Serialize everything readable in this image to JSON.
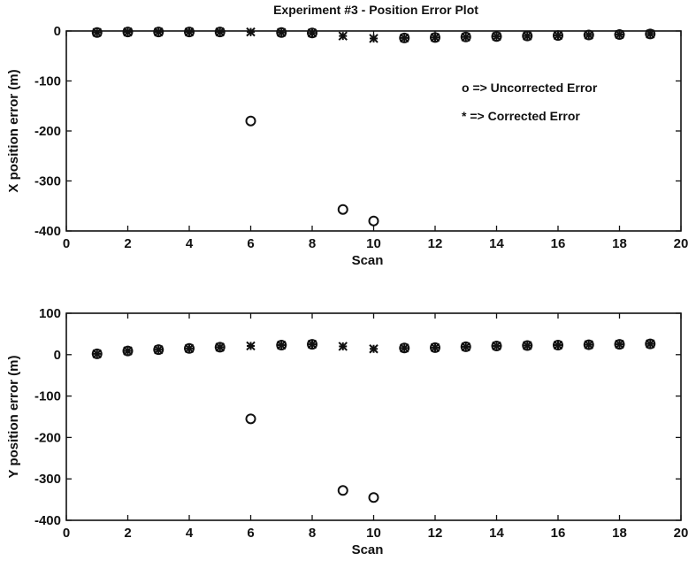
{
  "title": "Experiment #3 - Position Error Plot",
  "legend": {
    "uncorrected_label": "o => Uncorrected Error",
    "corrected_label": "* => Corrected Error",
    "placement": "upper-right of top panel"
  },
  "chart_data": [
    {
      "type": "scatter",
      "title": "Experiment #3 - Position Error Plot",
      "xlabel": "Scan",
      "ylabel": "X position error (m)",
      "xlim": [
        0,
        20
      ],
      "ylim": [
        -400,
        0
      ],
      "xticks": [
        0,
        2,
        4,
        6,
        8,
        10,
        12,
        14,
        16,
        18,
        20
      ],
      "yticks": [
        -400,
        -300,
        -200,
        -100,
        0
      ],
      "grid": false,
      "legend_placement": "top-right",
      "series": [
        {
          "name": "Uncorrected Error",
          "marker": "o",
          "x": [
            1,
            2,
            3,
            4,
            5,
            6,
            7,
            8,
            9,
            10,
            11,
            12,
            13,
            14,
            15,
            16,
            17,
            18,
            19
          ],
          "y": [
            -3,
            -2,
            -2,
            -2,
            -2,
            -180,
            -3,
            -4,
            -357,
            -380,
            -14,
            -13,
            -12,
            -11,
            -10,
            -9,
            -8,
            -7,
            -6
          ]
        },
        {
          "name": "Corrected Error",
          "marker": "*",
          "x": [
            1,
            2,
            3,
            4,
            5,
            6,
            7,
            8,
            9,
            10,
            11,
            12,
            13,
            14,
            15,
            16,
            17,
            18,
            19
          ],
          "y": [
            -3,
            -2,
            -2,
            -2,
            -2,
            -2,
            -3,
            -4,
            -10,
            -15,
            -14,
            -13,
            -12,
            -11,
            -10,
            -9,
            -8,
            -7,
            -6
          ]
        }
      ]
    },
    {
      "type": "scatter",
      "title": "",
      "xlabel": "Scan",
      "ylabel": "Y position error (m)",
      "xlim": [
        0,
        20
      ],
      "ylim": [
        -400,
        100
      ],
      "xticks": [
        0,
        2,
        4,
        6,
        8,
        10,
        12,
        14,
        16,
        18,
        20
      ],
      "yticks": [
        -400,
        -300,
        -200,
        -100,
        0,
        100
      ],
      "grid": false,
      "series": [
        {
          "name": "Uncorrected Error",
          "marker": "o",
          "x": [
            1,
            2,
            3,
            4,
            5,
            6,
            7,
            8,
            9,
            10,
            11,
            12,
            13,
            14,
            15,
            16,
            17,
            18,
            19
          ],
          "y": [
            2,
            9,
            12,
            15,
            18,
            -155,
            23,
            25,
            -328,
            -345,
            16,
            17,
            19,
            21,
            22,
            23,
            24,
            25,
            26
          ]
        },
        {
          "name": "Corrected Error",
          "marker": "*",
          "x": [
            1,
            2,
            3,
            4,
            5,
            6,
            7,
            8,
            9,
            10,
            11,
            12,
            13,
            14,
            15,
            16,
            17,
            18,
            19
          ],
          "y": [
            2,
            9,
            12,
            15,
            18,
            21,
            23,
            25,
            20,
            14,
            16,
            17,
            19,
            21,
            22,
            23,
            24,
            25,
            26
          ]
        }
      ]
    }
  ]
}
